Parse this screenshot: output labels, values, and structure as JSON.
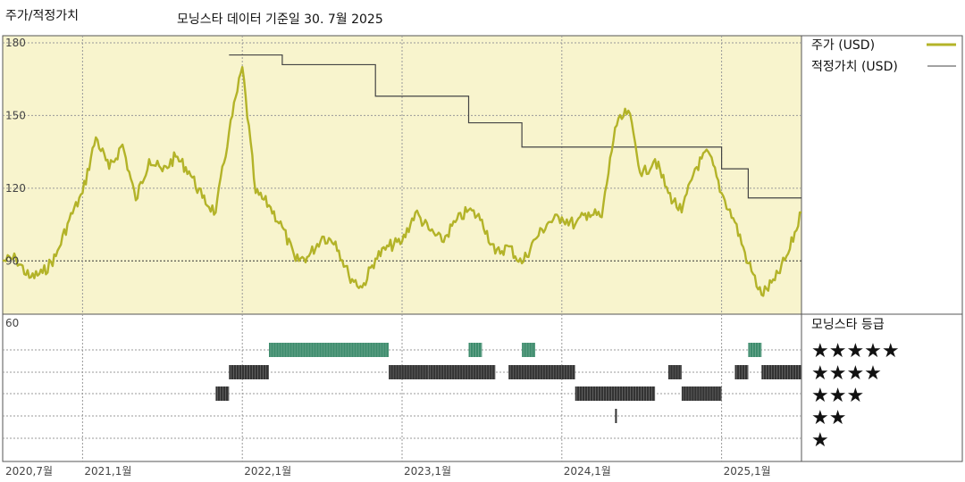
{
  "header": {
    "title": "주가/적정가치",
    "subtitle": "모닝스타 데이터 기준일 30. 7월 2025"
  },
  "legend": {
    "price_label": "주가 (USD)",
    "fair_label": "적정가치 (USD)",
    "price_color": "#b3b328",
    "fair_color": "#444444"
  },
  "rating_panel": {
    "title": "모닝스타 등급",
    "stars": [
      "★★★★★",
      "★★★★",
      "★★★",
      "★★",
      "★"
    ]
  },
  "chart_data": {
    "type": "line",
    "y_ticks": [
      "180",
      "150",
      "120",
      "90"
    ],
    "y_range": [
      68,
      180
    ],
    "lower_tick": "60",
    "x_ticks": [
      "2020,7월",
      "2021,1월",
      "2022,1월",
      "2023,1월",
      "2024,1월",
      "2025,1월"
    ],
    "x_tick_dates": [
      "2020-07",
      "2021-01",
      "2022-01",
      "2023-01",
      "2024-01",
      "2025-01"
    ],
    "x_range": [
      "2020-07",
      "2025-07"
    ],
    "grid": true,
    "background": "#f8f4cd",
    "series": [
      {
        "name": "주가 (USD)",
        "color": "#b3b328",
        "points": [
          [
            "2020-07",
            90
          ],
          [
            "2020-08",
            91
          ],
          [
            "2020-09",
            83
          ],
          [
            "2020-10",
            85
          ],
          [
            "2020-11",
            92
          ],
          [
            "2020-12",
            107
          ],
          [
            "2021-01",
            118
          ],
          [
            "2021-02",
            141
          ],
          [
            "2021-03",
            128
          ],
          [
            "2021-04",
            138
          ],
          [
            "2021-05",
            115
          ],
          [
            "2021-06",
            132
          ],
          [
            "2021-07",
            127
          ],
          [
            "2021-08",
            133
          ],
          [
            "2021-09",
            127
          ],
          [
            "2021-10",
            116
          ],
          [
            "2021-11",
            110
          ],
          [
            "2021-12",
            143
          ],
          [
            "2022-01",
            170
          ],
          [
            "2022-02",
            118
          ],
          [
            "2022-03",
            113
          ],
          [
            "2022-04",
            104
          ],
          [
            "2022-05",
            90
          ],
          [
            "2022-06",
            92
          ],
          [
            "2022-07",
            100
          ],
          [
            "2022-08",
            98
          ],
          [
            "2022-09",
            84
          ],
          [
            "2022-10",
            79
          ],
          [
            "2022-11",
            91
          ],
          [
            "2022-12",
            96
          ],
          [
            "2023-01",
            98
          ],
          [
            "2023-02",
            110
          ],
          [
            "2023-03",
            103
          ],
          [
            "2023-04",
            98
          ],
          [
            "2023-05",
            106
          ],
          [
            "2023-06",
            111
          ],
          [
            "2023-07",
            107
          ],
          [
            "2023-08",
            93
          ],
          [
            "2023-09",
            96
          ],
          [
            "2023-10",
            89
          ],
          [
            "2023-11",
            99
          ],
          [
            "2023-12",
            106
          ],
          [
            "2024-01",
            108
          ],
          [
            "2024-02",
            105
          ],
          [
            "2024-03",
            110
          ],
          [
            "2024-04",
            108
          ],
          [
            "2024-05",
            145
          ],
          [
            "2024-06",
            152
          ],
          [
            "2024-07",
            125
          ],
          [
            "2024-08",
            132
          ],
          [
            "2024-09",
            118
          ],
          [
            "2024-10",
            110
          ],
          [
            "2024-11",
            128
          ],
          [
            "2024-12",
            135
          ],
          [
            "2025-01",
            118
          ],
          [
            "2025-02",
            106
          ],
          [
            "2025-03",
            89
          ],
          [
            "2025-04",
            76
          ],
          [
            "2025-05",
            82
          ],
          [
            "2025-06",
            93
          ],
          [
            "2025-07",
            110
          ]
        ]
      },
      {
        "name": "적정가치 (USD)",
        "color": "#444444",
        "steps": [
          [
            "2021-12",
            175
          ],
          [
            "2022-04",
            171
          ],
          [
            "2022-11",
            158
          ],
          [
            "2023-06",
            147
          ],
          [
            "2023-10",
            137
          ],
          [
            "2025-01",
            128
          ],
          [
            "2025-03",
            116
          ],
          [
            "2025-07",
            116
          ]
        ]
      }
    ],
    "ratings": [
      {
        "stars": 5,
        "color": "#3e8c6d",
        "ranges": [
          [
            "2022-03",
            "2022-12"
          ],
          [
            "2023-06",
            "2023-07"
          ],
          [
            "2023-10",
            "2023-11"
          ],
          [
            "2025-03",
            "2025-04"
          ]
        ]
      },
      {
        "stars": 4,
        "color": "#333333",
        "ranges": [
          [
            "2021-12",
            "2022-03"
          ],
          [
            "2022-12",
            "2023-03"
          ],
          [
            "2023-03",
            "2023-08"
          ],
          [
            "2023-09",
            "2024-02"
          ],
          [
            "2024-09",
            "2024-10"
          ],
          [
            "2025-02",
            "2025-03"
          ],
          [
            "2025-04",
            "2025-07"
          ]
        ]
      },
      {
        "stars": 3,
        "color": "#333333",
        "ranges": [
          [
            "2021-11",
            "2021-12"
          ],
          [
            "2024-02",
            "2024-08"
          ],
          [
            "2024-10",
            "2025-01"
          ]
        ]
      },
      {
        "stars": 2,
        "color": "#333333",
        "ranges": [
          [
            "2024-05",
            "2024-05"
          ]
        ]
      },
      {
        "stars": 1,
        "color": "#333333",
        "ranges": []
      }
    ]
  }
}
